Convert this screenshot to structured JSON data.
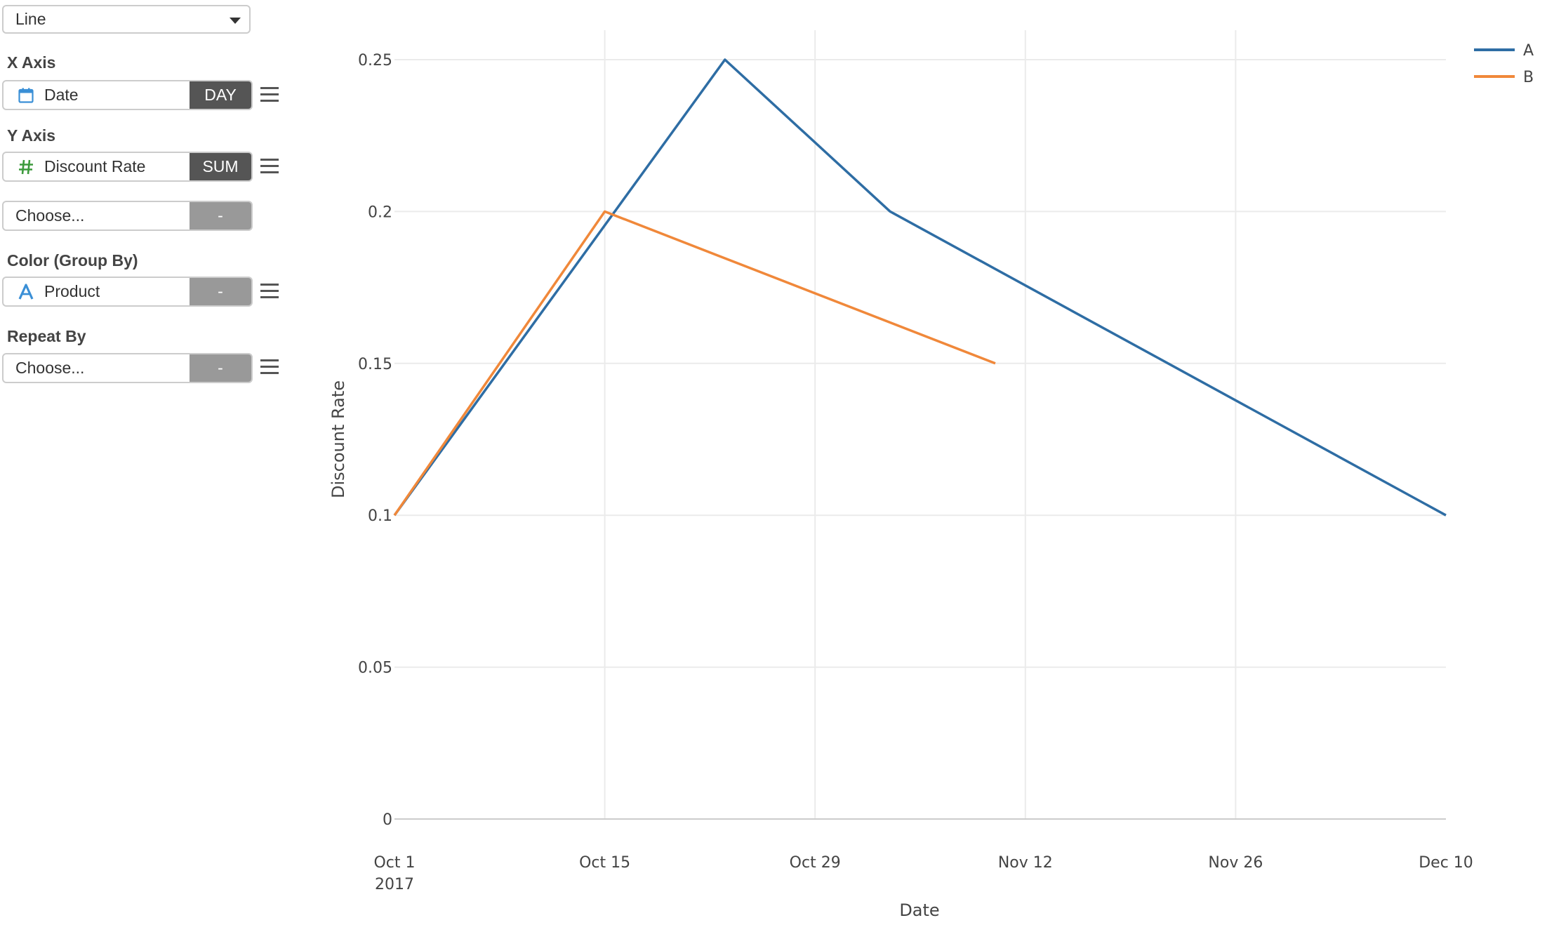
{
  "controls": {
    "chart_type": "Line",
    "x_axis": {
      "label": "X Axis",
      "field": "Date",
      "aggregation": "DAY",
      "icon": "calendar-icon"
    },
    "y_axis": {
      "label": "Y Axis",
      "field": "Discount Rate",
      "aggregation": "SUM",
      "icon": "number-hash-icon"
    },
    "y_axis_extra": {
      "placeholder": "Choose...",
      "aggregation": "-"
    },
    "color": {
      "label": "Color (Group By)",
      "field": "Product",
      "aggregation": "-",
      "icon": "text-type-icon"
    },
    "repeat": {
      "label": "Repeat By",
      "placeholder": "Choose...",
      "aggregation": "-"
    }
  },
  "colors": {
    "series_a": "#2e6da4",
    "series_b": "#f0883a",
    "dark_button": "#555555",
    "light_button": "#999999"
  },
  "chart_data": {
    "type": "line",
    "xlabel": "Date",
    "ylabel": "Discount Rate",
    "x_ticks": [
      "2017-10-01",
      "2017-10-15",
      "2017-10-29",
      "2017-11-12",
      "2017-11-26",
      "2017-12-10"
    ],
    "x_tick_labels": [
      "Oct 1",
      "Oct 15",
      "Oct 29",
      "Nov 12",
      "Nov 26",
      "Dec 10"
    ],
    "x_tick_year": "2017",
    "xlim": [
      "2017-10-01",
      "2017-12-10"
    ],
    "y_ticks": [
      0,
      0.05,
      0.1,
      0.15,
      0.2,
      0.25
    ],
    "y_tick_labels": [
      "0",
      "0.05",
      "0.1",
      "0.15",
      "0.2",
      "0.25"
    ],
    "ylim": [
      0,
      0.25
    ],
    "grid": true,
    "legend_position": "top-right",
    "series": [
      {
        "name": "A",
        "color": "#2e6da4",
        "x": [
          "2017-10-01",
          "2017-10-23",
          "2017-11-03",
          "2017-12-10"
        ],
        "values": [
          0.1,
          0.25,
          0.2,
          0.1
        ]
      },
      {
        "name": "B",
        "color": "#f0883a",
        "x": [
          "2017-10-01",
          "2017-10-15",
          "2017-11-10"
        ],
        "values": [
          0.1,
          0.2,
          0.15
        ]
      }
    ]
  }
}
